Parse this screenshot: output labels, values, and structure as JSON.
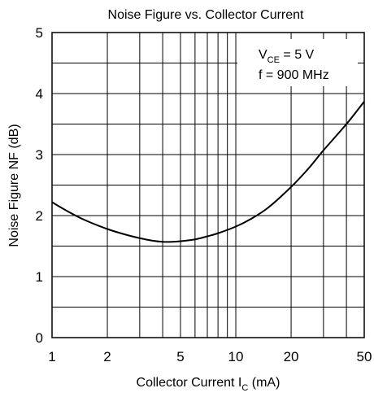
{
  "chart_data": {
    "type": "line",
    "title": "Noise Figure vs. Collector Current",
    "xlabel": {
      "main": "Collector Current  I",
      "sub": "C",
      "unit": "  (mA)"
    },
    "ylabel": "Noise Figure  NF  (dB)",
    "x_scale": "log",
    "xlim": [
      1,
      50
    ],
    "ylim": [
      0,
      5
    ],
    "x_ticks": [
      1,
      2,
      5,
      10,
      20,
      50
    ],
    "x_tick_labels": [
      "1",
      "2",
      "5",
      "10",
      "20",
      "50"
    ],
    "y_ticks": [
      0,
      1,
      2,
      3,
      4,
      5
    ],
    "y_tick_labels": [
      "0",
      "1",
      "2",
      "3",
      "4",
      "5"
    ],
    "grid": true,
    "annotations": {
      "line1": {
        "main": "V",
        "sub": "CE",
        "rest": " = 5 V"
      },
      "line2": "f = 900 MHz"
    },
    "series": [
      {
        "x": [
          1,
          1.2,
          1.5,
          2,
          2.5,
          3,
          3.5,
          4,
          4.5,
          5,
          6,
          7,
          8,
          10,
          12,
          15,
          20,
          25,
          30,
          40,
          50
        ],
        "y": [
          2.22,
          2.08,
          1.93,
          1.78,
          1.69,
          1.63,
          1.59,
          1.57,
          1.57,
          1.58,
          1.61,
          1.66,
          1.71,
          1.82,
          1.94,
          2.13,
          2.47,
          2.78,
          3.07,
          3.5,
          3.87
        ]
      }
    ]
  }
}
